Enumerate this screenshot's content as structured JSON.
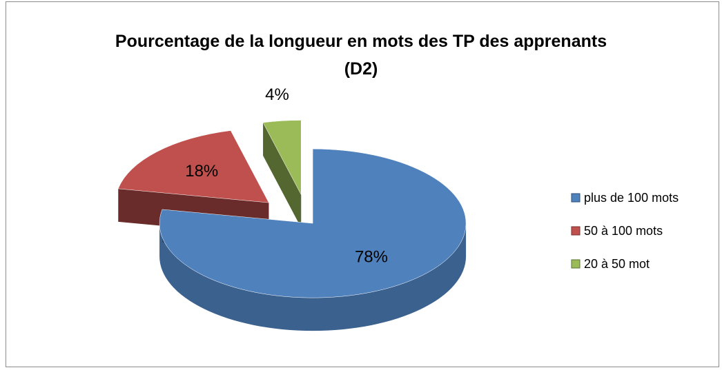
{
  "chart_data": {
    "type": "pie",
    "3d": true,
    "title": "Pourcentage de la longueur en mots des TP des apprenants (D2)",
    "categories": [
      "plus de 100 mots",
      "50 à 100 mots",
      "20 à 50 mot"
    ],
    "values": [
      78,
      18,
      4
    ],
    "value_labels": [
      "78%",
      "18%",
      "4%"
    ],
    "colors": [
      "#4f81bd",
      "#c0504d",
      "#9bbb59"
    ],
    "legend": "right"
  }
}
